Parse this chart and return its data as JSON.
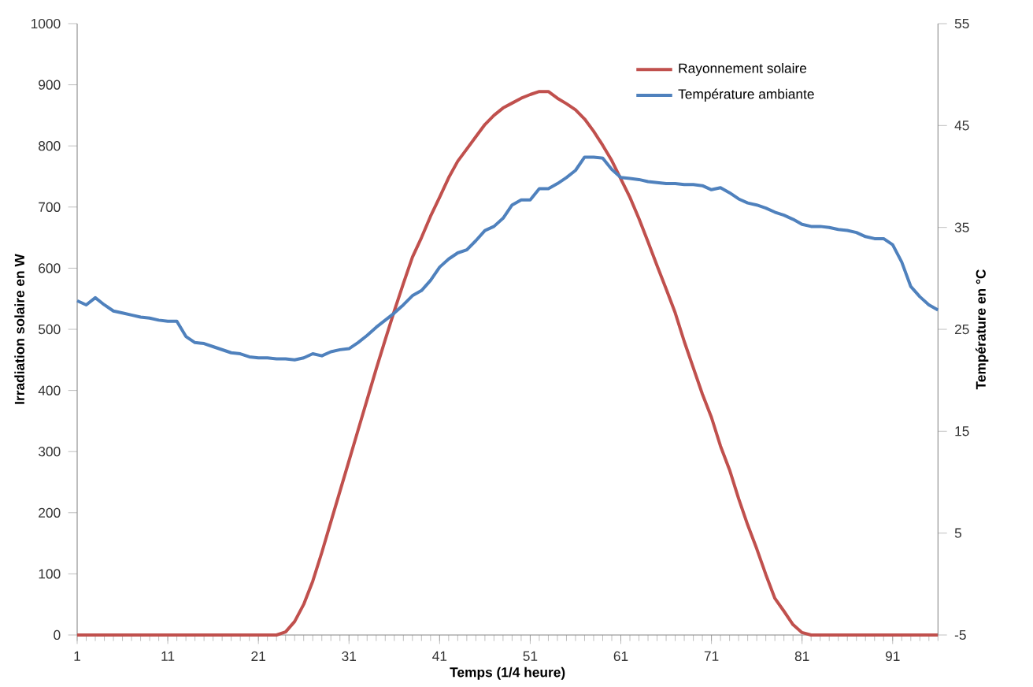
{
  "chart_data": {
    "type": "line",
    "xlabel": "Temps (1/4 heure)",
    "ylabel": "Irradiation solaire en W",
    "y2label": "Température en °C",
    "x": [
      1,
      2,
      3,
      4,
      5,
      6,
      7,
      8,
      9,
      10,
      11,
      12,
      13,
      14,
      15,
      16,
      17,
      18,
      19,
      20,
      21,
      22,
      23,
      24,
      25,
      26,
      27,
      28,
      29,
      30,
      31,
      32,
      33,
      34,
      35,
      36,
      37,
      38,
      39,
      40,
      41,
      42,
      43,
      44,
      45,
      46,
      47,
      48,
      49,
      50,
      51,
      52,
      53,
      54,
      55,
      56,
      57,
      58,
      59,
      60,
      61,
      62,
      63,
      64,
      65,
      66,
      67,
      68,
      69,
      70,
      71,
      72,
      73,
      74,
      75,
      76,
      77,
      78,
      79,
      80,
      81,
      82,
      83,
      84,
      85,
      86,
      87,
      88,
      89,
      90,
      91,
      92,
      93,
      94,
      95,
      96
    ],
    "xlim": [
      1,
      96
    ],
    "xticks": [
      1,
      11,
      21,
      31,
      41,
      51,
      61,
      71,
      81,
      91
    ],
    "ylim": [
      0,
      1000
    ],
    "yticks": [
      0,
      100,
      200,
      300,
      400,
      500,
      600,
      700,
      800,
      900,
      1000
    ],
    "y2lim": [
      -5,
      55
    ],
    "y2ticks": [
      -5,
      5,
      15,
      25,
      35,
      45,
      55
    ],
    "legend": "top right",
    "series": [
      {
        "name": "Rayonnement solaire",
        "color": "#c0504d",
        "axis": "y",
        "values": [
          0,
          0,
          0,
          0,
          0,
          0,
          0,
          0,
          0,
          0,
          0,
          0,
          0,
          0,
          0,
          0,
          0,
          0,
          0,
          0,
          0,
          0,
          0,
          5,
          22,
          50,
          88,
          135,
          185,
          235,
          285,
          335,
          385,
          435,
          483,
          530,
          575,
          618,
          650,
          685,
          716,
          748,
          775,
          795,
          815,
          835,
          850,
          862,
          870,
          878,
          884,
          889,
          889,
          878,
          869,
          859,
          844,
          824,
          801,
          776,
          746,
          716,
          681,
          643,
          604,
          566,
          527,
          480,
          437,
          394,
          356,
          309,
          270,
          223,
          180,
          141,
          99,
          60,
          39,
          17,
          4,
          0,
          0,
          0,
          0,
          0,
          0,
          0,
          0,
          0,
          0,
          0,
          0,
          0,
          0,
          0
        ]
      },
      {
        "name": "Température ambiante",
        "color": "#4f81bd",
        "axis": "y2",
        "values": [
          27.8,
          27.4,
          28.1,
          27.4,
          26.8,
          26.6,
          26.4,
          26.2,
          26.1,
          25.9,
          25.8,
          25.8,
          24.3,
          23.7,
          23.6,
          23.3,
          23.0,
          22.7,
          22.6,
          22.3,
          22.2,
          22.2,
          22.1,
          22.1,
          22.0,
          22.2,
          22.6,
          22.4,
          22.8,
          23.0,
          23.1,
          23.7,
          24.4,
          25.2,
          25.9,
          26.6,
          27.4,
          28.3,
          28.8,
          29.8,
          31.1,
          31.9,
          32.5,
          32.8,
          33.7,
          34.7,
          35.1,
          35.9,
          37.2,
          37.7,
          37.7,
          38.8,
          38.8,
          39.3,
          39.9,
          40.6,
          41.9,
          41.9,
          41.8,
          40.7,
          39.9,
          39.8,
          39.7,
          39.5,
          39.4,
          39.3,
          39.3,
          39.2,
          39.2,
          39.1,
          38.7,
          38.9,
          38.4,
          37.8,
          37.4,
          37.2,
          36.9,
          36.5,
          36.2,
          35.8,
          35.3,
          35.1,
          35.1,
          35.0,
          34.8,
          34.7,
          34.5,
          34.1,
          33.9,
          33.9,
          33.3,
          31.6,
          29.2,
          28.2,
          27.4,
          26.9
        ]
      }
    ]
  }
}
